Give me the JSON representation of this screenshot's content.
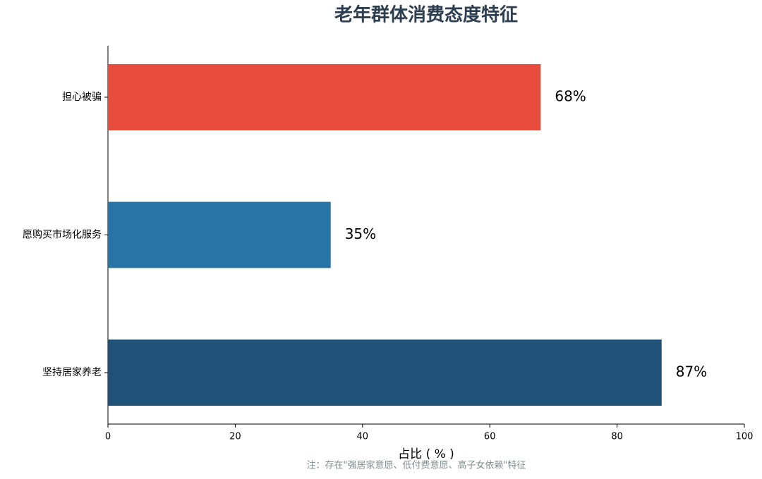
{
  "chart_data": {
    "type": "barh",
    "title": "老年群体消费态度特征",
    "categories": [
      "担心被骗",
      "愿购买市场化服务",
      "坚持居家养老"
    ],
    "values": [
      68,
      35,
      87
    ],
    "value_labels": [
      "68%",
      "35%",
      "87%"
    ],
    "colors": [
      "#e74c3c",
      "#2874a6",
      "#1f5276"
    ],
    "xlabel": "占比 ( % )",
    "xlim": [
      0,
      100
    ],
    "xticks": [
      0,
      20,
      40,
      60,
      80,
      100
    ],
    "note": "注：存在\"强居家意愿、低付费意愿、高子女依赖\"特征"
  }
}
